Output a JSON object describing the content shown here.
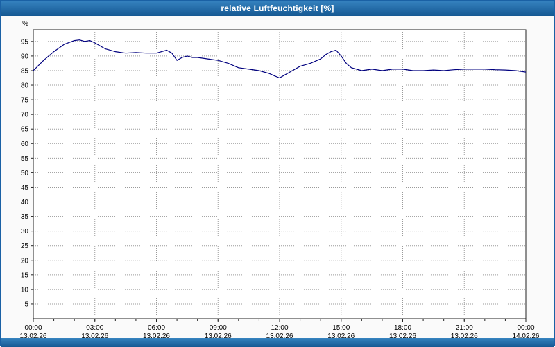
{
  "window": {
    "title": "relative Luftfeuchtigkeit [%]",
    "titlebar_color": "#155892",
    "border_color": "#1a61a5"
  },
  "chart_data": {
    "type": "line",
    "title": "relative Luftfeuchtigkeit [%]",
    "xlabel": "",
    "ylabel": "%",
    "ylim": [
      0,
      99
    ],
    "yticks": [
      5,
      10,
      15,
      20,
      25,
      30,
      35,
      40,
      45,
      50,
      55,
      60,
      65,
      70,
      75,
      80,
      85,
      90,
      95
    ],
    "grid": true,
    "legend_position": "none",
    "line_color": "#00007f",
    "grid_color": "#9a9a9a",
    "plot_background": "#ffffff",
    "x_axis": {
      "range_hours": [
        0,
        24
      ],
      "tick_hours": [
        0,
        3,
        6,
        9,
        12,
        15,
        18,
        21,
        24
      ],
      "tick_times": [
        "00:00",
        "03:00",
        "06:00",
        "09:00",
        "12:00",
        "15:00",
        "18:00",
        "21:00",
        "00:00"
      ],
      "tick_dates": [
        "13.02.26",
        "13.02.26",
        "13.02.26",
        "13.02.26",
        "13.02.26",
        "13.02.26",
        "13.02.26",
        "13.02.26",
        "14.02.26"
      ]
    },
    "series": [
      {
        "name": "relative Luftfeuchtigkeit",
        "x_hours": [
          0,
          0.5,
          1,
          1.5,
          2,
          2.25,
          2.5,
          2.75,
          3,
          3.5,
          4,
          4.5,
          5,
          5.5,
          6,
          6.25,
          6.5,
          6.75,
          7,
          7.25,
          7.5,
          7.75,
          8,
          8.5,
          9,
          9.5,
          10,
          10.5,
          11,
          11.5,
          11.75,
          12,
          12.25,
          12.5,
          13,
          13.5,
          14,
          14.25,
          14.5,
          14.75,
          15,
          15.25,
          15.5,
          16,
          16.5,
          17,
          17.5,
          18,
          18.5,
          19,
          19.5,
          20,
          20.5,
          21,
          21.5,
          22,
          22.5,
          23,
          23.5,
          24
        ],
        "values": [
          85,
          88.5,
          91.5,
          94,
          95.3,
          95.5,
          95,
          95.3,
          94.5,
          92.5,
          91.5,
          91,
          91.2,
          91,
          91,
          91.5,
          92,
          91,
          88.5,
          89.5,
          90,
          89.5,
          89.5,
          89,
          88.5,
          87.5,
          86,
          85.5,
          85,
          84,
          83.2,
          82.5,
          83.5,
          84.5,
          86.5,
          87.5,
          89,
          90.5,
          91.5,
          92,
          90,
          87.5,
          86,
          85,
          85.5,
          85,
          85.5,
          85.5,
          85,
          85,
          85.2,
          85,
          85.3,
          85.5,
          85.5,
          85.5,
          85.3,
          85.2,
          85,
          84.5
        ]
      }
    ]
  }
}
